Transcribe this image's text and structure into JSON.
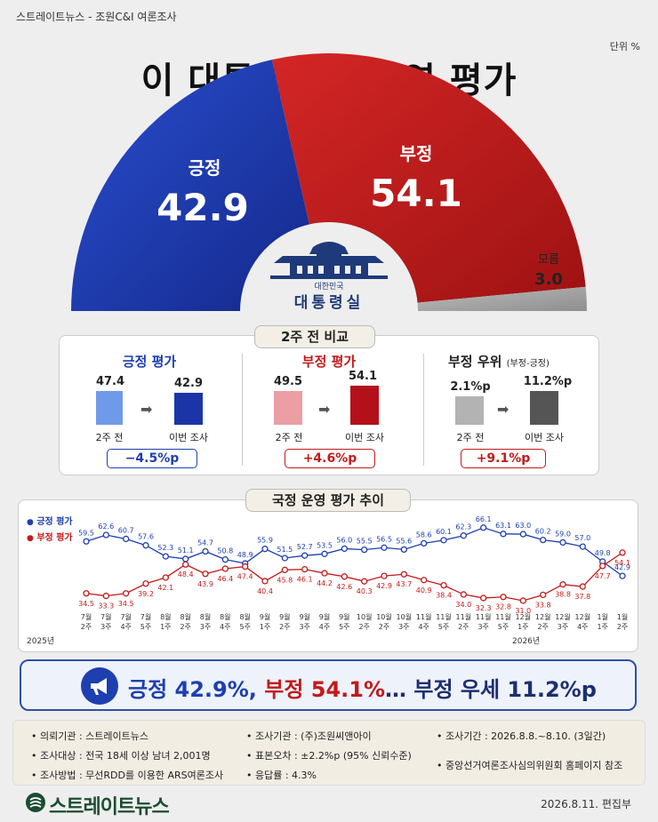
{
  "header": {
    "source": "스트레이트뉴스 - 조원C&I 여론조사",
    "unit": "단위 %",
    "title": "이 대통령 국정운영 평가"
  },
  "gauge": {
    "positive_label": "긍정",
    "positive_value": "42.9",
    "negative_label": "부정",
    "negative_value": "54.1",
    "unknown_label": "모름",
    "unknown_value": "3.0",
    "emblem_small": "대한민국",
    "emblem_big": "대통령실",
    "colors": {
      "positive": "#1f3fb5",
      "negative": "#c41c1c",
      "unknown": "#a9a9a9"
    }
  },
  "comparison": {
    "title": "2주 전 비교",
    "sections": [
      {
        "title": "긍정 평가",
        "title_note": "",
        "prev": "47.4",
        "curr": "42.9",
        "prev_label": "2주 전",
        "curr_label": "이번 조사",
        "delta": "−4.5%p"
      },
      {
        "title": "부정 평가",
        "title_note": "",
        "prev": "49.5",
        "curr": "54.1",
        "prev_label": "2주 전",
        "curr_label": "이번 조사",
        "delta": "+4.6%p"
      },
      {
        "title": "부정 우위",
        "title_note": "(부정-긍정)",
        "prev": "2.1%p",
        "curr": "11.2%p",
        "prev_label": "2주 전",
        "curr_label": "이번 조사",
        "delta": "+9.1%p"
      }
    ]
  },
  "trend": {
    "title": "국정 운영 평가 추이",
    "legend_positive": "긍정 평가",
    "legend_negative": "부정 평가",
    "year_start": "2025년",
    "year_end": "2026년"
  },
  "chart_data": {
    "type": "line",
    "title": "국정 운영 평가 추이",
    "categories": [
      "7월 2주",
      "7월 3주",
      "7월 4주",
      "7월 5주",
      "8월 1주",
      "8월 2주",
      "8월 3주",
      "8월 4주",
      "8월 5주",
      "9월 1주",
      "9월 2주",
      "9월 3주",
      "9월 4주",
      "9월 5주",
      "10월 2주",
      "10월 2주",
      "10월 3주",
      "11월 4주",
      "11월 5주",
      "11월 2주",
      "11월 3주",
      "11월 5주",
      "12월 1주",
      "12월 2주",
      "12월 3주",
      "12월 4주",
      "1월 1주",
      "1월 2주"
    ],
    "series": [
      {
        "name": "긍정 평가",
        "values": [
          59.5,
          62.6,
          60.7,
          57.6,
          52.3,
          51.1,
          54.7,
          50.8,
          48.9,
          55.9,
          51.5,
          52.7,
          53.5,
          56.0,
          55.5,
          56.5,
          55.6,
          58.6,
          60.1,
          62.3,
          66.1,
          63.1,
          63.0,
          60.2,
          59.0,
          57.0,
          49.8,
          42.9
        ]
      },
      {
        "name": "부정 평가",
        "values": [
          34.5,
          33.3,
          34.5,
          39.2,
          42.1,
          48.4,
          43.9,
          46.4,
          47.4,
          40.4,
          45.8,
          46.1,
          44.2,
          42.6,
          40.3,
          42.9,
          43.7,
          40.9,
          38.4,
          34.0,
          32.3,
          32.8,
          31.0,
          33.8,
          38.8,
          37.8,
          47.7,
          54.1
        ]
      }
    ],
    "ylim": [
      25,
      72
    ]
  },
  "headline": {
    "pos": "긍정 42.9%,",
    "neg": "부정 54.1%",
    "rest": "… 부정 우세 11.2%p"
  },
  "info": {
    "client": "의뢰기관 : 스트레이트뉴스",
    "target": "조사대상 : 전국 18세 이상 남녀 2,001명",
    "method": "조사방법 : 무선RDD를 이용한 ARS여론조사",
    "agency": "조사기관 : (주)조원씨앤아이",
    "error": "표본오차 : ±2.2%p (95% 신뢰수준)",
    "response": "응답률 : 4.3%",
    "period": "조사기간 : 2026.8.8.~8.10. (3일간)",
    "ref": "중앙선거여론조사심의위원회 홈페이지 참조"
  },
  "footer": {
    "logo": "스트레이트뉴스",
    "date": "2026.8.11.  편집부"
  }
}
